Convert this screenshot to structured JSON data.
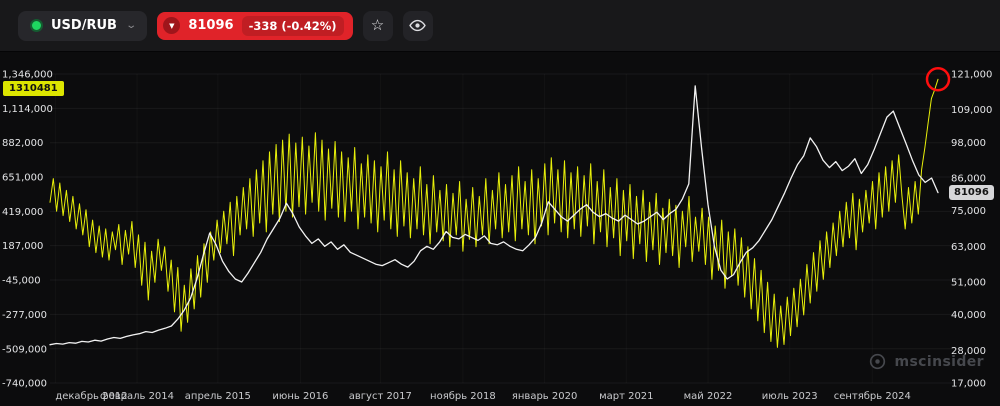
{
  "header": {
    "pair_label": "USD/RUB",
    "price": "81096",
    "change": "-338 (-0.42%)",
    "accent_green": "#1ed760",
    "accent_red": "#e02329"
  },
  "watermark": {
    "text": "mscinsider"
  },
  "chart_data": {
    "type": "line",
    "title": "",
    "grid": "faint",
    "x_axis": {
      "labels": [
        "декабрь 2012",
        "февраль 2014",
        "апрель 2015",
        "июнь 2016",
        "август 2017",
        "ноябрь 2018",
        "январь 2020",
        "март 2021",
        "май 2022",
        "июль 2023",
        "сентябрь 2024"
      ],
      "positions_f": [
        0.006,
        0.098,
        0.189,
        0.282,
        0.372,
        0.465,
        0.557,
        0.649,
        0.741,
        0.833,
        0.926
      ]
    },
    "left_axis": {
      "max": 1346000,
      "min": -740000,
      "tick_values": [
        1346000,
        1114000,
        882000,
        651000,
        419000,
        187000,
        -45000,
        -277000,
        -509000,
        -740000
      ],
      "tick_labels": [
        "1,346,000",
        "1,114,000",
        "882,000",
        "651,000",
        "419,000",
        "187,000",
        "-45,000",
        "-277,000",
        "-509,000",
        "-740,000"
      ]
    },
    "right_axis": {
      "max": 121000,
      "min": 17000,
      "tick_values": [
        121000,
        109000,
        98000,
        86000,
        75000,
        63000,
        51000,
        40000,
        28000,
        17000
      ],
      "tick_labels": [
        "121,000",
        "109,000",
        "98,000",
        "86,000",
        "75,000",
        "63,000",
        "51,000",
        "40,000",
        "28,000",
        "17,000"
      ]
    },
    "labels": {
      "yellow_chip": "1310481",
      "price_badge": "81096"
    },
    "annotations": {
      "red_circle": {
        "series": 0,
        "position": "last",
        "color": "#ff0e0e",
        "radius": 11
      }
    },
    "series": [
      {
        "name": "yellow-indicator",
        "axis": "left",
        "color": "#e8f00a",
        "width": 1,
        "unit_scale": 1000,
        "last_value": 1310481,
        "values": [
          480,
          640,
          420,
          610,
          390,
          560,
          350,
          520,
          300,
          470,
          260,
          430,
          180,
          360,
          140,
          320,
          110,
          300,
          90,
          280,
          160,
          330,
          60,
          290,
          130,
          350,
          40,
          260,
          -80,
          210,
          -180,
          150,
          -60,
          230,
          20,
          180,
          -120,
          90,
          -260,
          40,
          -390,
          -80,
          -330,
          30,
          -240,
          120,
          -160,
          200,
          -60,
          280,
          90,
          360,
          140,
          420,
          200,
          480,
          120,
          520,
          260,
          580,
          300,
          640,
          250,
          700,
          340,
          760,
          280,
          820,
          400,
          870,
          350,
          900,
          420,
          940,
          380,
          880,
          450,
          920,
          400,
          860,
          480,
          950,
          420,
          900,
          360,
          840,
          440,
          890,
          380,
          820,
          350,
          780,
          420,
          850,
          300,
          740,
          380,
          800,
          340,
          760,
          280,
          720,
          360,
          820,
          300,
          700,
          250,
          760,
          320,
          680,
          240,
          640,
          300,
          720,
          260,
          600,
          200,
          660,
          280,
          560,
          220,
          600,
          180,
          540,
          260,
          620,
          150,
          500,
          230,
          580,
          180,
          520,
          260,
          640,
          200,
          560,
          300,
          680,
          240,
          600,
          280,
          660,
          220,
          720,
          300,
          620,
          260,
          700,
          200,
          640,
          320,
          740,
          260,
          780,
          340,
          700,
          280,
          760,
          240,
          680,
          300,
          720,
          250,
          660,
          320,
          740,
          200,
          620,
          280,
          700,
          180,
          580,
          240,
          640,
          120,
          560,
          220,
          600,
          100,
          520,
          200,
          560,
          80,
          480,
          160,
          540,
          60,
          440,
          140,
          500,
          120,
          460,
          40,
          420,
          180,
          520,
          80,
          380,
          150,
          440,
          60,
          380,
          -40,
          320,
          20,
          360,
          -100,
          280,
          -20,
          300,
          -80,
          240,
          -160,
          180,
          -240,
          100,
          -320,
          20,
          -400,
          -60,
          -460,
          -140,
          -500,
          -220,
          -480,
          -160,
          -420,
          -100,
          -360,
          -40,
          -280,
          60,
          -200,
          140,
          -120,
          220,
          -40,
          280,
          40,
          340,
          120,
          420,
          180,
          480,
          240,
          540,
          160,
          500,
          280,
          560,
          340,
          620,
          300,
          680,
          380,
          720,
          420,
          760,
          480,
          800,
          520,
          300,
          580,
          340,
          620,
          400,
          700,
          850,
          1020,
          1180,
          1240,
          1310.481
        ]
      },
      {
        "name": "usd-rub-price",
        "axis": "right",
        "color": "#f2f2f2",
        "width": 1.3,
        "unit_scale": 1000,
        "last_value": 81096,
        "values": [
          29.9,
          30.3,
          30.1,
          30.6,
          30.4,
          31.0,
          30.8,
          31.4,
          31.1,
          31.8,
          32.3,
          32.0,
          32.7,
          33.2,
          33.6,
          34.3,
          34.0,
          34.8,
          35.4,
          36.2,
          38.5,
          41.5,
          45.5,
          52.0,
          60.0,
          67.5,
          63.5,
          58.0,
          54.5,
          52.0,
          51.0,
          54.0,
          57.5,
          61.0,
          65.5,
          69.0,
          72.5,
          77.5,
          74.0,
          69.5,
          66.5,
          64.0,
          65.5,
          63.0,
          64.5,
          62.0,
          63.5,
          61.0,
          60.0,
          59.0,
          58.0,
          57.0,
          56.5,
          57.5,
          58.5,
          57.0,
          56.0,
          58.0,
          61.5,
          63.0,
          62.0,
          64.5,
          68.0,
          66.0,
          65.5,
          67.0,
          66.0,
          65.0,
          66.5,
          64.0,
          63.5,
          64.5,
          63.0,
          62.0,
          61.5,
          63.5,
          66.0,
          71.0,
          78.0,
          75.5,
          73.0,
          71.5,
          73.5,
          75.5,
          77.0,
          74.5,
          73.0,
          74.0,
          72.5,
          71.5,
          73.5,
          72.0,
          70.5,
          71.5,
          73.0,
          74.5,
          72.0,
          74.0,
          75.5,
          79.0,
          84.0,
          117.0,
          96.0,
          77.0,
          63.0,
          55.0,
          52.0,
          53.5,
          57.5,
          61.0,
          62.5,
          65.0,
          68.5,
          72.0,
          76.5,
          81.0,
          86.0,
          90.5,
          93.5,
          99.5,
          96.5,
          92.0,
          89.5,
          91.5,
          88.5,
          90.0,
          92.5,
          87.5,
          90.5,
          95.5,
          101.0,
          106.5,
          108.5,
          103.0,
          97.5,
          92.0,
          87.0,
          84.5,
          86.0,
          81.096
        ]
      }
    ]
  }
}
